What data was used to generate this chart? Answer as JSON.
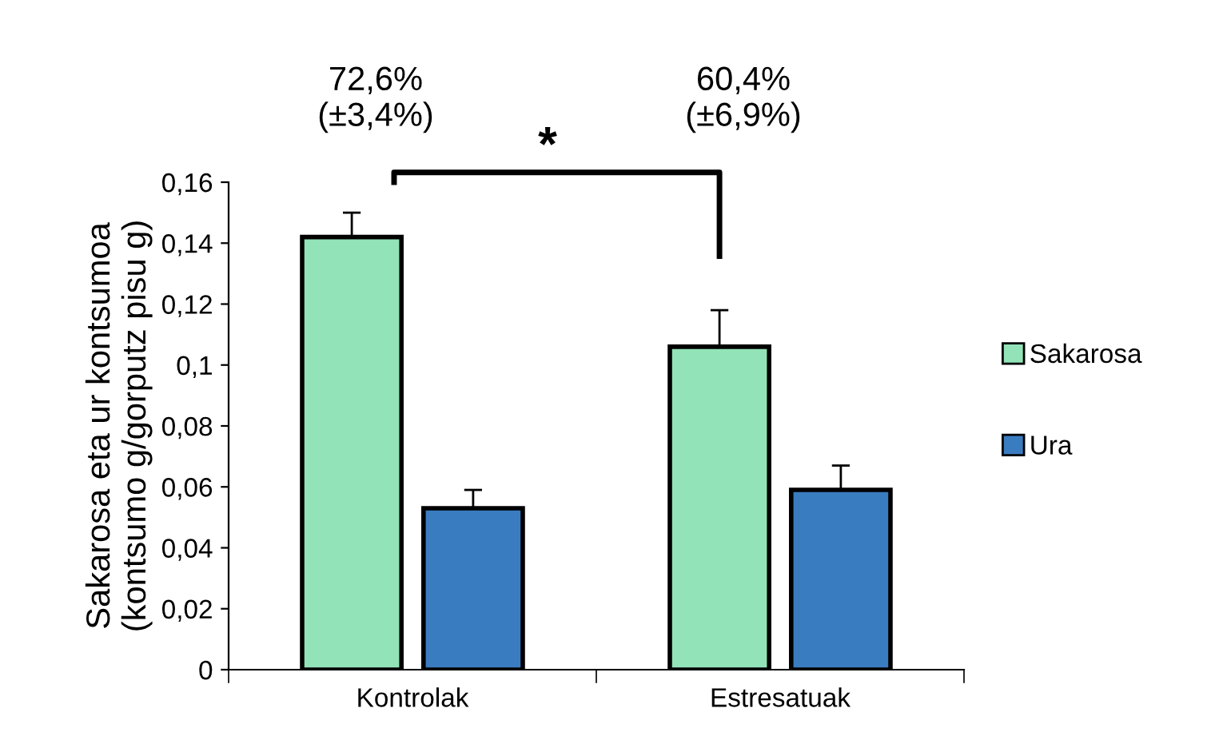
{
  "chart_data": {
    "type": "bar",
    "ylabel": "Sakarosa eta ur kontsumoa\n(kontsumo g/gorputz pisu g)",
    "categories": [
      "Kontrolak",
      "Estresatuak"
    ],
    "series": [
      {
        "name": "Sakarosa",
        "color": "#93e3b8",
        "values": [
          0.142,
          0.106
        ],
        "errors": [
          [
            0.142,
            0.15
          ],
          [
            0.106,
            0.118
          ]
        ]
      },
      {
        "name": "Ura",
        "color": "#3a7cc0",
        "values": [
          0.053,
          0.059
        ],
        "errors": [
          [
            0.053,
            0.059
          ],
          [
            0.059,
            0.067
          ]
        ]
      }
    ],
    "ylim": [
      0,
      0.16
    ],
    "yticks": [
      0,
      {
        "value": 0.02,
        "label": "0,02"
      },
      {
        "value": 0.04,
        "label": "0,04"
      },
      {
        "value": 0.06,
        "label": "0,06"
      },
      {
        "value": 0.08,
        "label": "0,08"
      },
      {
        "value": 0.1,
        "label": "0,1"
      },
      {
        "value": 0.12,
        "label": "0,12"
      },
      {
        "value": 0.14,
        "label": "0,14"
      },
      {
        "value": 0.16,
        "label": "0,16"
      }
    ],
    "annotations": [
      "72,6%\n(±3,4%)",
      "60,4%\n(±6,9%)",
      "*"
    ],
    "grid": false,
    "legend": "right"
  }
}
